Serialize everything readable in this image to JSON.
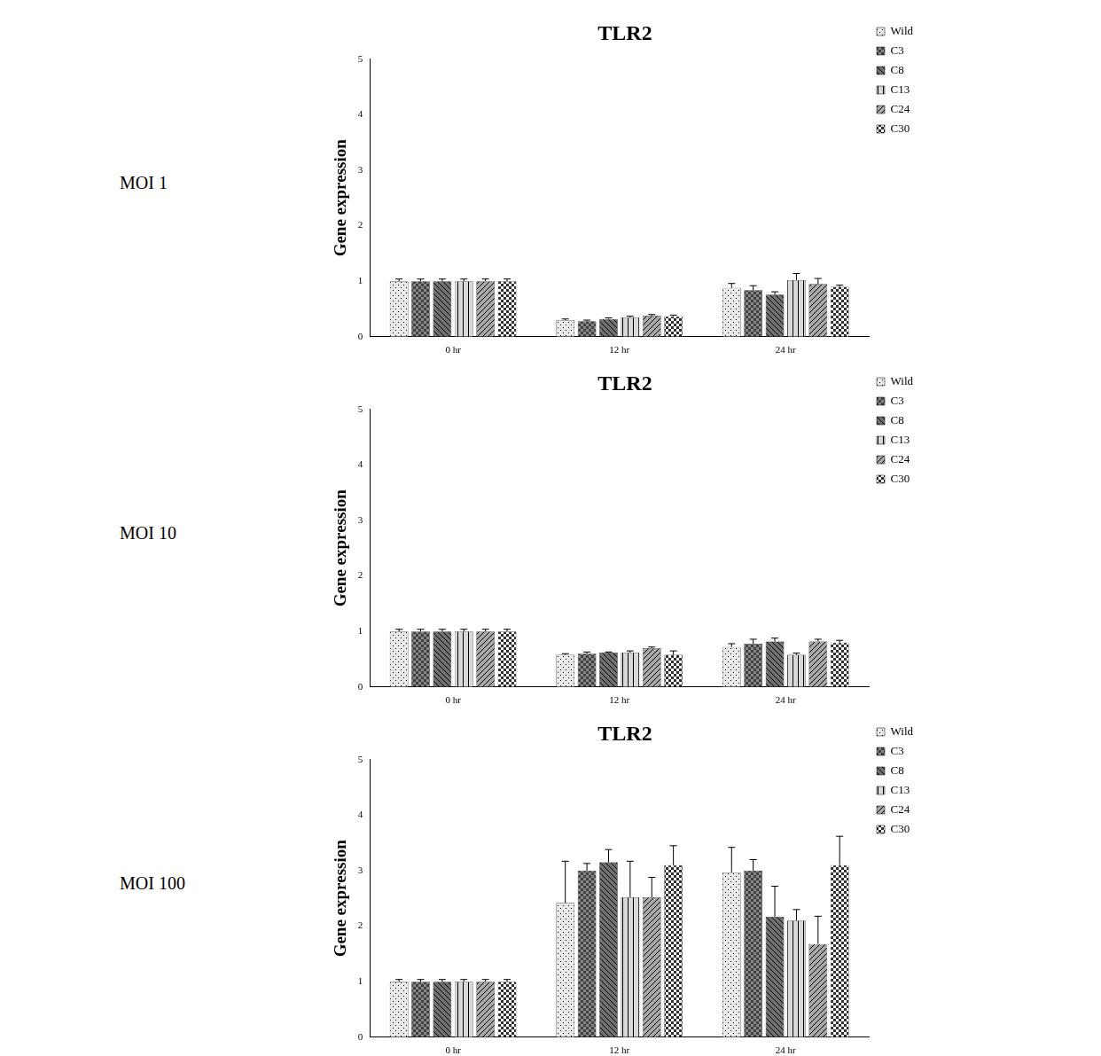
{
  "chart_data": [
    {
      "type": "bar",
      "title": "TLR2",
      "annotations": [
        "MOI 1"
      ],
      "y_label": "Gene expression",
      "categories": [
        "0 hr",
        "12 hr",
        "24 hr"
      ],
      "ylim": [
        0,
        5
      ],
      "yticks": [
        0,
        1,
        2,
        3,
        4,
        5
      ],
      "grid": false,
      "legend": "right",
      "series": [
        {
          "name": "Wild",
          "color": "#e8e8e8",
          "values": [
            1.0,
            0.3,
            0.88
          ],
          "errors": [
            0.04,
            0.02,
            0.08
          ]
        },
        {
          "name": "C3",
          "color": "#404040",
          "values": [
            1.0,
            0.28,
            0.84
          ],
          "errors": [
            0.04,
            0.02,
            0.08
          ]
        },
        {
          "name": "C8",
          "color": "#707070",
          "values": [
            1.0,
            0.32,
            0.76
          ],
          "errors": [
            0.04,
            0.02,
            0.05
          ]
        },
        {
          "name": "C13",
          "color": "#d8d8d8",
          "values": [
            1.0,
            0.35,
            1.02
          ],
          "errors": [
            0.04,
            0.02,
            0.12
          ]
        },
        {
          "name": "C24",
          "color": "#a8a8a8",
          "values": [
            1.0,
            0.38,
            0.95
          ],
          "errors": [
            0.04,
            0.02,
            0.1
          ]
        },
        {
          "name": "C30",
          "color": "#303030",
          "values": [
            1.0,
            0.37,
            0.9
          ],
          "errors": [
            0.04,
            0.02,
            0.03
          ]
        }
      ]
    },
    {
      "type": "bar",
      "title": "TLR2",
      "annotations": [
        "MOI 10"
      ],
      "y_label": "Gene expression",
      "categories": [
        "0 hr",
        "12 hr",
        "24 hr"
      ],
      "ylim": [
        0,
        5
      ],
      "yticks": [
        0,
        1,
        2,
        3,
        4,
        5
      ],
      "grid": false,
      "legend": "right",
      "series": [
        {
          "name": "Wild",
          "color": "#e8e8e8",
          "values": [
            1.0,
            0.58,
            0.72
          ],
          "errors": [
            0.04,
            0.02,
            0.06
          ]
        },
        {
          "name": "C3",
          "color": "#404040",
          "values": [
            1.0,
            0.6,
            0.78
          ],
          "errors": [
            0.04,
            0.03,
            0.08
          ]
        },
        {
          "name": "C8",
          "color": "#707070",
          "values": [
            1.0,
            0.62,
            0.82
          ],
          "errors": [
            0.04,
            0.01,
            0.06
          ]
        },
        {
          "name": "C13",
          "color": "#d8d8d8",
          "values": [
            1.0,
            0.62,
            0.58
          ],
          "errors": [
            0.04,
            0.03,
            0.03
          ]
        },
        {
          "name": "C24",
          "color": "#a8a8a8",
          "values": [
            1.0,
            0.7,
            0.82
          ],
          "errors": [
            0.04,
            0.02,
            0.04
          ]
        },
        {
          "name": "C30",
          "color": "#303030",
          "values": [
            1.0,
            0.58,
            0.8
          ],
          "errors": [
            0.04,
            0.07,
            0.04
          ]
        }
      ]
    },
    {
      "type": "bar",
      "title": "TLR2",
      "annotations": [
        "MOI 100"
      ],
      "y_label": "Gene expression",
      "categories": [
        "0 hr",
        "12 hr",
        "24 hr"
      ],
      "ylim": [
        0,
        5
      ],
      "yticks": [
        0,
        1,
        2,
        3,
        4,
        5
      ],
      "grid": false,
      "legend": "right",
      "series": [
        {
          "name": "Wild",
          "color": "#e8e8e8",
          "values": [
            1.0,
            2.42,
            2.97
          ],
          "errors": [
            0.04,
            0.75,
            0.45
          ]
        },
        {
          "name": "C3",
          "color": "#404040",
          "values": [
            1.0,
            3.0,
            3.0
          ],
          "errors": [
            0.04,
            0.13,
            0.2
          ]
        },
        {
          "name": "C8",
          "color": "#707070",
          "values": [
            1.0,
            3.15,
            2.17
          ],
          "errors": [
            0.04,
            0.23,
            0.55
          ]
        },
        {
          "name": "C13",
          "color": "#d8d8d8",
          "values": [
            1.0,
            2.52,
            2.1
          ],
          "errors": [
            0.04,
            0.65,
            0.2
          ]
        },
        {
          "name": "C24",
          "color": "#a8a8a8",
          "values": [
            1.0,
            2.52,
            1.68
          ],
          "errors": [
            0.04,
            0.36,
            0.5
          ]
        },
        {
          "name": "C30",
          "color": "#303030",
          "values": [
            1.0,
            3.1,
            3.1
          ],
          "errors": [
            0.04,
            0.35,
            0.52
          ]
        }
      ]
    }
  ]
}
